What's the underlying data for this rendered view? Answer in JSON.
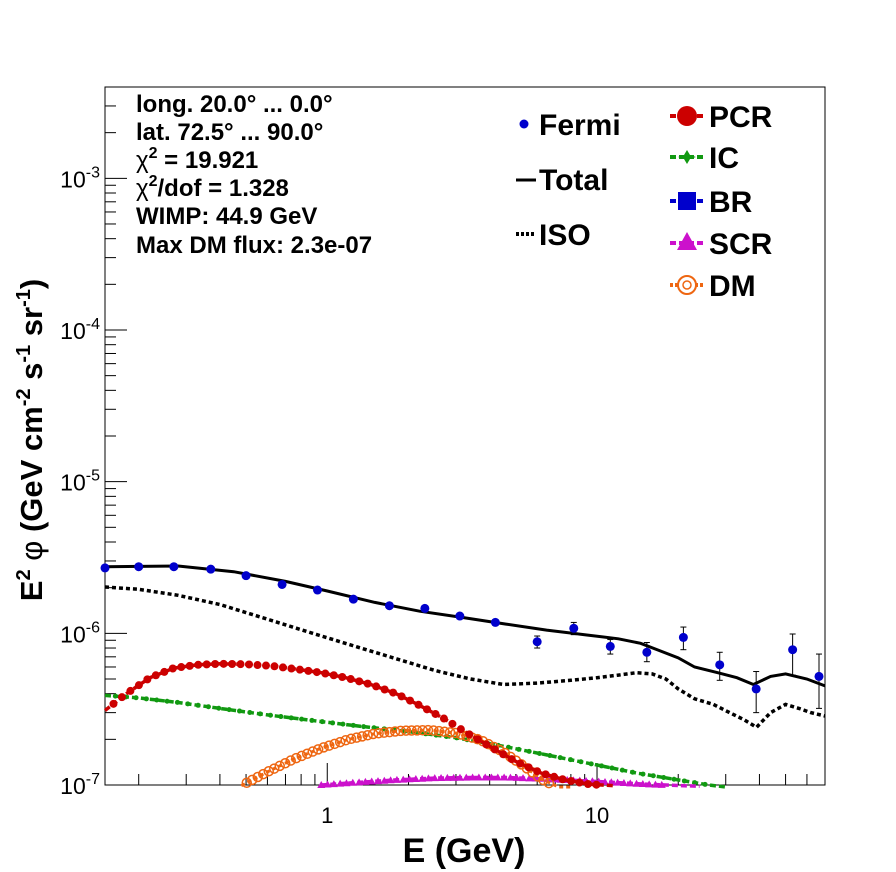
{
  "chart_data": {
    "type": "line",
    "x_scale": "log",
    "y_scale": "log",
    "xlim": [
      0.15,
      70
    ],
    "ylim": [
      1e-07,
      0.004
    ],
    "xlabel": "E (GeV)",
    "ylabel": {
      "prefix": "E",
      "sup1": "2",
      "phi": "φ",
      "open": "(GeV cm",
      "sup2": "-2",
      "mid": " s",
      "sup3": "-1",
      "sr": " sr",
      "sup4": "-1",
      "close": ")"
    },
    "x_ticks": [
      {
        "value": 1,
        "label": "1"
      },
      {
        "value": 10,
        "label": "10"
      }
    ],
    "y_ticks": [
      {
        "value": 1e-07,
        "base": "10",
        "exp": "-7"
      },
      {
        "value": 1e-06,
        "base": "10",
        "exp": "-6"
      },
      {
        "value": 1e-05,
        "base": "10",
        "exp": "-5"
      },
      {
        "value": 0.0001,
        "base": "10",
        "exp": "-4"
      },
      {
        "value": 0.001,
        "base": "10",
        "exp": "-3"
      }
    ],
    "info": {
      "longitude": "long. 20.0° ... 0.0°",
      "latitude": "lat. 72.5° ... 90.0°",
      "chi2_sym": "χ",
      "chi2_sup": "2",
      "chi2_value": " = 19.921",
      "chi2dof_value": "/dof = 1.328",
      "wimp": "WIMP: 44.9 GeV",
      "max_dm": "Max DM flux: 2.3e-07"
    },
    "legend": [
      {
        "key": "fermi",
        "label": "Fermi",
        "color": "#0000cc"
      },
      {
        "key": "total",
        "label": "Total",
        "color": "#000000"
      },
      {
        "key": "iso",
        "label": "ISO",
        "color": "#000000"
      },
      {
        "key": "pcr",
        "label": "PCR",
        "color": "#cc0000"
      },
      {
        "key": "ic",
        "label": "IC",
        "color": "#119911"
      },
      {
        "key": "br",
        "label": "BR",
        "color": "#0000cc"
      },
      {
        "key": "scr",
        "label": "SCR",
        "color": "#cc11cc"
      },
      {
        "key": "dm",
        "label": "DM",
        "color": "#ee6611"
      }
    ],
    "fermi": {
      "x": [
        0.15,
        0.2,
        0.27,
        0.37,
        0.5,
        0.68,
        0.92,
        1.25,
        1.7,
        2.3,
        3.1,
        4.2,
        6.0,
        8.2,
        11.2,
        15.3,
        20.9,
        28.5,
        38.9,
        53.1,
        66.5
      ],
      "y": [
        2.7e-06,
        2.75e-06,
        2.75e-06,
        2.65e-06,
        2.4e-06,
        2.1e-06,
        1.93e-06,
        1.68e-06,
        1.52e-06,
        1.46e-06,
        1.3e-06,
        1.18e-06,
        8.8e-07,
        1.08e-06,
        8.2e-07,
        7.5e-07,
        9.4e-07,
        6.2e-07,
        4.3e-07,
        7.8e-07,
        5.2e-07
      ],
      "err_lo": [
        0,
        0,
        0,
        0,
        0,
        0,
        0,
        0,
        0,
        0,
        0,
        0,
        8e-08,
        1e-07,
        9e-08,
        1e-07,
        1.6e-07,
        1.3e-07,
        1.3e-07,
        2.5e-07,
        2e-07
      ],
      "err_hi": [
        0,
        0,
        0,
        0,
        0,
        0,
        0,
        0,
        0,
        0,
        0,
        0,
        8e-08,
        1e-07,
        9e-08,
        1.2e-07,
        1.6e-07,
        1.3e-07,
        1.3e-07,
        2.1e-07,
        2.1e-07
      ]
    },
    "total": {
      "x": [
        0.15,
        0.28,
        0.45,
        0.7,
        1.0,
        1.5,
        2.2,
        3.2,
        4.6,
        6.5,
        9.0,
        12,
        14.5,
        17,
        20,
        23,
        28,
        33,
        38,
        44,
        50,
        60,
        70
      ],
      "y": [
        2.75e-06,
        2.78e-06,
        2.55e-06,
        2.2e-06,
        1.9e-06,
        1.6e-06,
        1.4e-06,
        1.27e-06,
        1.15e-06,
        1.05e-06,
        9.8e-07,
        9.2e-07,
        8.6e-07,
        7.7e-07,
        6.9e-07,
        6e-07,
        5.5e-07,
        5.1e-07,
        4.6e-07,
        5.2e-07,
        5.4e-07,
        5e-07,
        4.5e-07
      ]
    },
    "iso": {
      "x": [
        0.15,
        0.2,
        0.28,
        0.4,
        0.6,
        0.9,
        1.3,
        1.8,
        2.5,
        3.4,
        4.5,
        6,
        8,
        10,
        12,
        14,
        16,
        18,
        20,
        23,
        27,
        31,
        35,
        39,
        44,
        50,
        56,
        62,
        70
      ],
      "y": [
        2.02e-06,
        1.95e-06,
        1.78e-06,
        1.55e-06,
        1.24e-06,
        9.9e-07,
        8.1e-07,
        6.8e-07,
        5.7e-07,
        5e-07,
        4.6e-07,
        4.7e-07,
        4.9e-07,
        5.1e-07,
        5.3e-07,
        5.5e-07,
        5.4e-07,
        5e-07,
        4.3e-07,
        3.7e-07,
        3.4e-07,
        3e-07,
        2.7e-07,
        2.4e-07,
        3e-07,
        3.4e-07,
        3.2e-07,
        3e-07,
        2.85e-07
      ]
    },
    "pcr": {
      "x": [
        0.15,
        0.18,
        0.22,
        0.27,
        0.33,
        0.4,
        0.5,
        0.62,
        0.77,
        0.95,
        1.17,
        1.45,
        1.8,
        2.2,
        2.7,
        3.3,
        4.1,
        5.0,
        6.2,
        7.6,
        9.4,
        11.5
      ],
      "y": [
        3.1e-07,
        4e-07,
        5.1e-07,
        5.9e-07,
        6.2e-07,
        6.3e-07,
        6.25e-07,
        6.1e-07,
        5.8e-07,
        5.5e-07,
        5.1e-07,
        4.6e-07,
        4e-07,
        3.35e-07,
        2.75e-07,
        2.2e-07,
        1.75e-07,
        1.43e-07,
        1.2e-07,
        1.08e-07,
        1.01e-07,
        9.9e-08
      ]
    },
    "ic": {
      "x": [
        0.15,
        0.2,
        0.28,
        0.4,
        0.6,
        0.9,
        1.3,
        2,
        3,
        4.5,
        6.5,
        9.5,
        14,
        20,
        26,
        30
      ],
      "y": [
        3.9e-07,
        3.75e-07,
        3.5e-07,
        3.2e-07,
        2.9e-07,
        2.65e-07,
        2.45e-07,
        2.25e-07,
        2.05e-07,
        1.8e-07,
        1.58e-07,
        1.38e-07,
        1.2e-07,
        1.08e-07,
        1e-07,
        9.6e-08
      ]
    },
    "br": {
      "x": [],
      "y": []
    },
    "scr": {
      "x": [
        0.95,
        1.3,
        1.8,
        2.5,
        3.4,
        4.6,
        6.2,
        8.5,
        11.5,
        15.5,
        21,
        24
      ],
      "y": [
        1e-07,
        1.04e-07,
        1.08e-07,
        1.11e-07,
        1.12e-07,
        1.12e-07,
        1.1e-07,
        1.07e-07,
        1.04e-07,
        1.01e-07,
        9.9e-08,
        9.8e-08
      ]
    },
    "dm": {
      "x": [
        0.48,
        0.6,
        0.75,
        0.95,
        1.2,
        1.5,
        1.9,
        2.4,
        3.0,
        3.7,
        4.5,
        5.3,
        6.2,
        7.2,
        8.0
      ],
      "y": [
        9.9e-08,
        1.22e-07,
        1.48e-07,
        1.75e-07,
        2e-07,
        2.18e-07,
        2.28e-07,
        2.3e-07,
        2.2e-07,
        1.98e-07,
        1.65e-07,
        1.35e-07,
        1.1e-07,
        9.5e-08,
        8.5e-08
      ]
    }
  }
}
